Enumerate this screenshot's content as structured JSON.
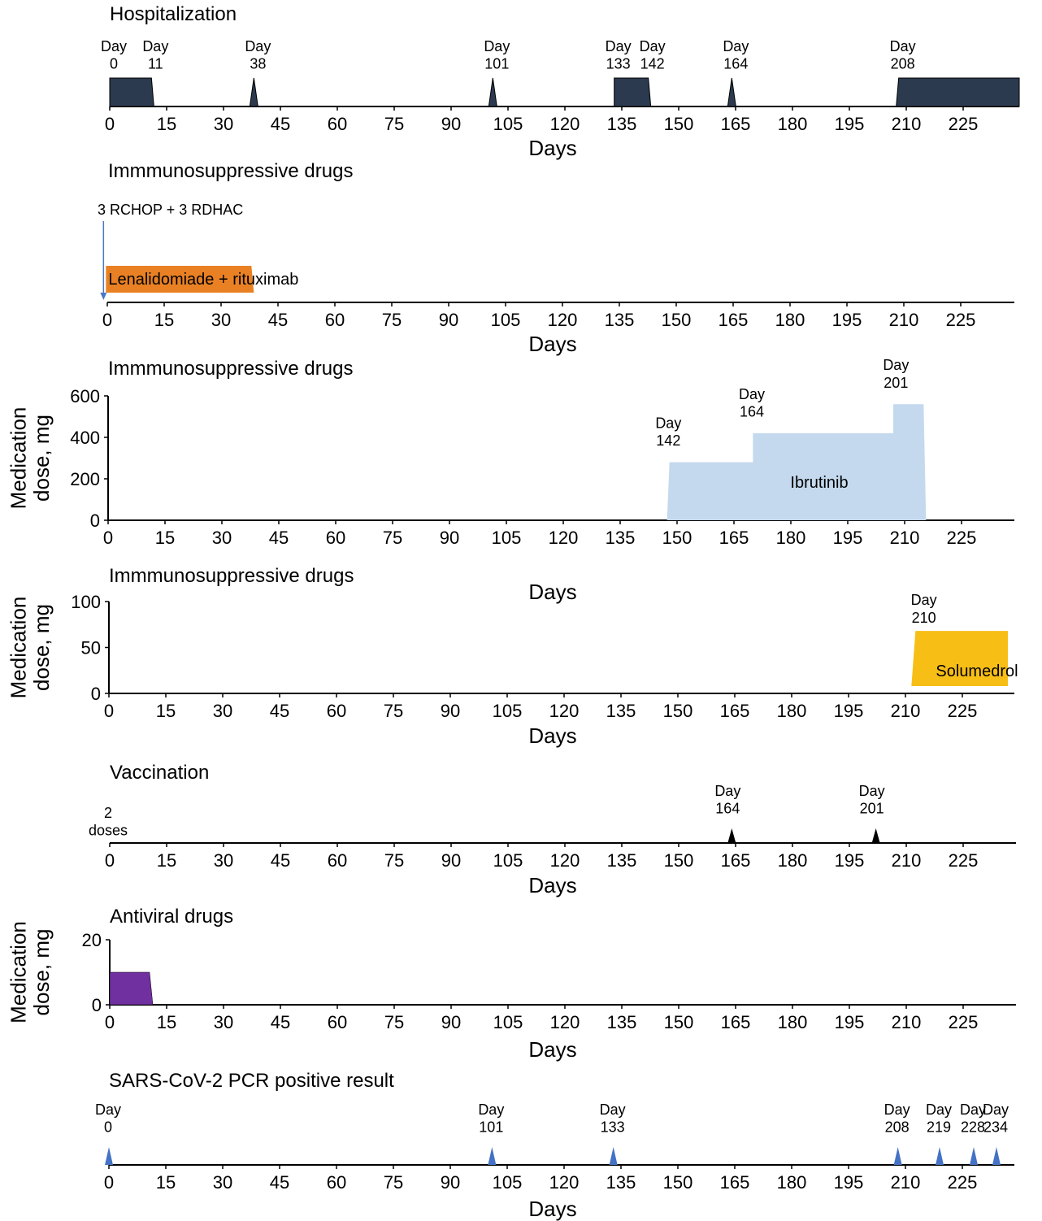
{
  "tick_labels": [
    "0",
    "15",
    "30",
    "45",
    "60",
    "75",
    "90",
    "105",
    "120",
    "135",
    "150",
    "165",
    "180",
    "195",
    "210",
    "225"
  ],
  "colors": {
    "hospitalization": "#2b3a4f",
    "lenalidomide": "#e98124",
    "rchop_arrow": "#4a78c4",
    "ibrutinib": "#c4d9ee",
    "solumedrol": "#f7be16",
    "antiviral": "#7030a0",
    "vaccine": "#000000",
    "pcr": "#4472c4"
  },
  "chart_data": [
    {
      "id": "hospitalization",
      "type": "area",
      "title": "Hospitalization",
      "xlabel": "Days",
      "xlim": [
        0,
        234
      ],
      "annotations": [
        {
          "line1": "Day",
          "line2": "0",
          "day": 0
        },
        {
          "line1": "Day",
          "line2": "11",
          "day": 11
        },
        {
          "line1": "Day",
          "line2": "38",
          "day": 38
        },
        {
          "line1": "Day",
          "line2": "101",
          "day": 101
        },
        {
          "line1": "Day",
          "line2": "133",
          "day": 133
        },
        {
          "line1": "Day",
          "line2": "142",
          "day": 142
        },
        {
          "line1": "Day",
          "line2": "164",
          "day": 164
        },
        {
          "line1": "Day",
          "line2": "208",
          "day": 208
        }
      ],
      "periods": [
        {
          "start": 0,
          "end": 11
        },
        {
          "start": 38,
          "end": 38
        },
        {
          "start": 101,
          "end": 101
        },
        {
          "start": 133,
          "end": 142
        },
        {
          "start": 164,
          "end": 164
        },
        {
          "start": 208,
          "end": 234
        }
      ]
    },
    {
      "id": "immuno-1",
      "type": "bar",
      "title": "Immmunosuppressive drugs",
      "xlabel": "Days",
      "xlim": [
        0,
        234
      ],
      "arrow_label": "3 RCHOP + 3 RDHAC",
      "arrow_day": -1,
      "bar": {
        "label": "Lenalidomiade + rituximab",
        "start": -1,
        "end": 38
      }
    },
    {
      "id": "immuno-2",
      "type": "area",
      "title": "Immmunosuppressive drugs",
      "xlabel": "Days",
      "ylabel_line1": "Medication",
      "ylabel_line2": "dose, mg",
      "ylim": [
        0,
        600
      ],
      "yticks": [
        0,
        200,
        400,
        600
      ],
      "xlim": [
        0,
        234
      ],
      "series": [
        {
          "name": "Ibrutinib",
          "steps": [
            {
              "start": 148,
              "end": 170,
              "dose": 280
            },
            {
              "start": 170,
              "end": 207,
              "dose": 420
            },
            {
              "start": 207,
              "end": 215,
              "dose": 560
            }
          ]
        }
      ],
      "annotations": [
        {
          "line1": "Day",
          "line2": "142",
          "day": 149,
          "dose": 280
        },
        {
          "line1": "Day",
          "line2": "164",
          "day": 171,
          "dose": 420
        },
        {
          "line1": "Day",
          "line2": "201",
          "day": 209,
          "dose": 560
        }
      ]
    },
    {
      "id": "immuno-3",
      "type": "area",
      "title": "Immmunosuppressive drugs",
      "xlabel": "Days",
      "ylabel_line1": "Medication",
      "ylabel_line2": "dose, mg",
      "ylim": [
        0,
        100
      ],
      "yticks": [
        0,
        50,
        100
      ],
      "xlim": [
        0,
        234
      ],
      "series": [
        {
          "name": "Solumedrol",
          "steps": [
            {
              "start": 212,
              "end": 237,
              "dose": 68
            }
          ]
        }
      ],
      "annotations": [
        {
          "line1": "Day",
          "line2": "210",
          "day": 217,
          "dose": 68
        }
      ]
    },
    {
      "id": "vaccination",
      "type": "scatter",
      "title": "Vaccination",
      "xlabel": "Days",
      "xlim": [
        0,
        234
      ],
      "note_line1": "2",
      "note_line2": "doses",
      "events": [
        {
          "line1": "Day",
          "line2": "164",
          "day": 164
        },
        {
          "line1": "Day",
          "line2": "201",
          "day": 202
        }
      ]
    },
    {
      "id": "antiviral",
      "type": "area",
      "title": "Antiviral drugs",
      "xlabel": "Days",
      "ylabel_line1": "Medication",
      "ylabel_line2": "dose, mg",
      "ylim": [
        0,
        20
      ],
      "yticks": [
        0,
        20
      ],
      "xlim": [
        0,
        234
      ],
      "series": [
        {
          "steps": [
            {
              "start": 0,
              "end": 9,
              "dose": 10
            }
          ]
        }
      ]
    },
    {
      "id": "pcr",
      "type": "scatter",
      "title": "SARS-CoV-2 PCR positive result",
      "xlabel": "Days",
      "xlim": [
        0,
        234
      ],
      "events": [
        {
          "line1": "Day",
          "line2": "0",
          "day": 0
        },
        {
          "line1": "Day",
          "line2": "101",
          "day": 101
        },
        {
          "line1": "Day",
          "line2": "133",
          "day": 133
        },
        {
          "line1": "Day",
          "line2": "208",
          "day": 208
        },
        {
          "line1": "Day",
          "line2": "219",
          "day": 219
        },
        {
          "line1": "Day",
          "line2": "228",
          "day": 228
        },
        {
          "line1": "Day",
          "line2": "234",
          "day": 234
        }
      ]
    }
  ]
}
